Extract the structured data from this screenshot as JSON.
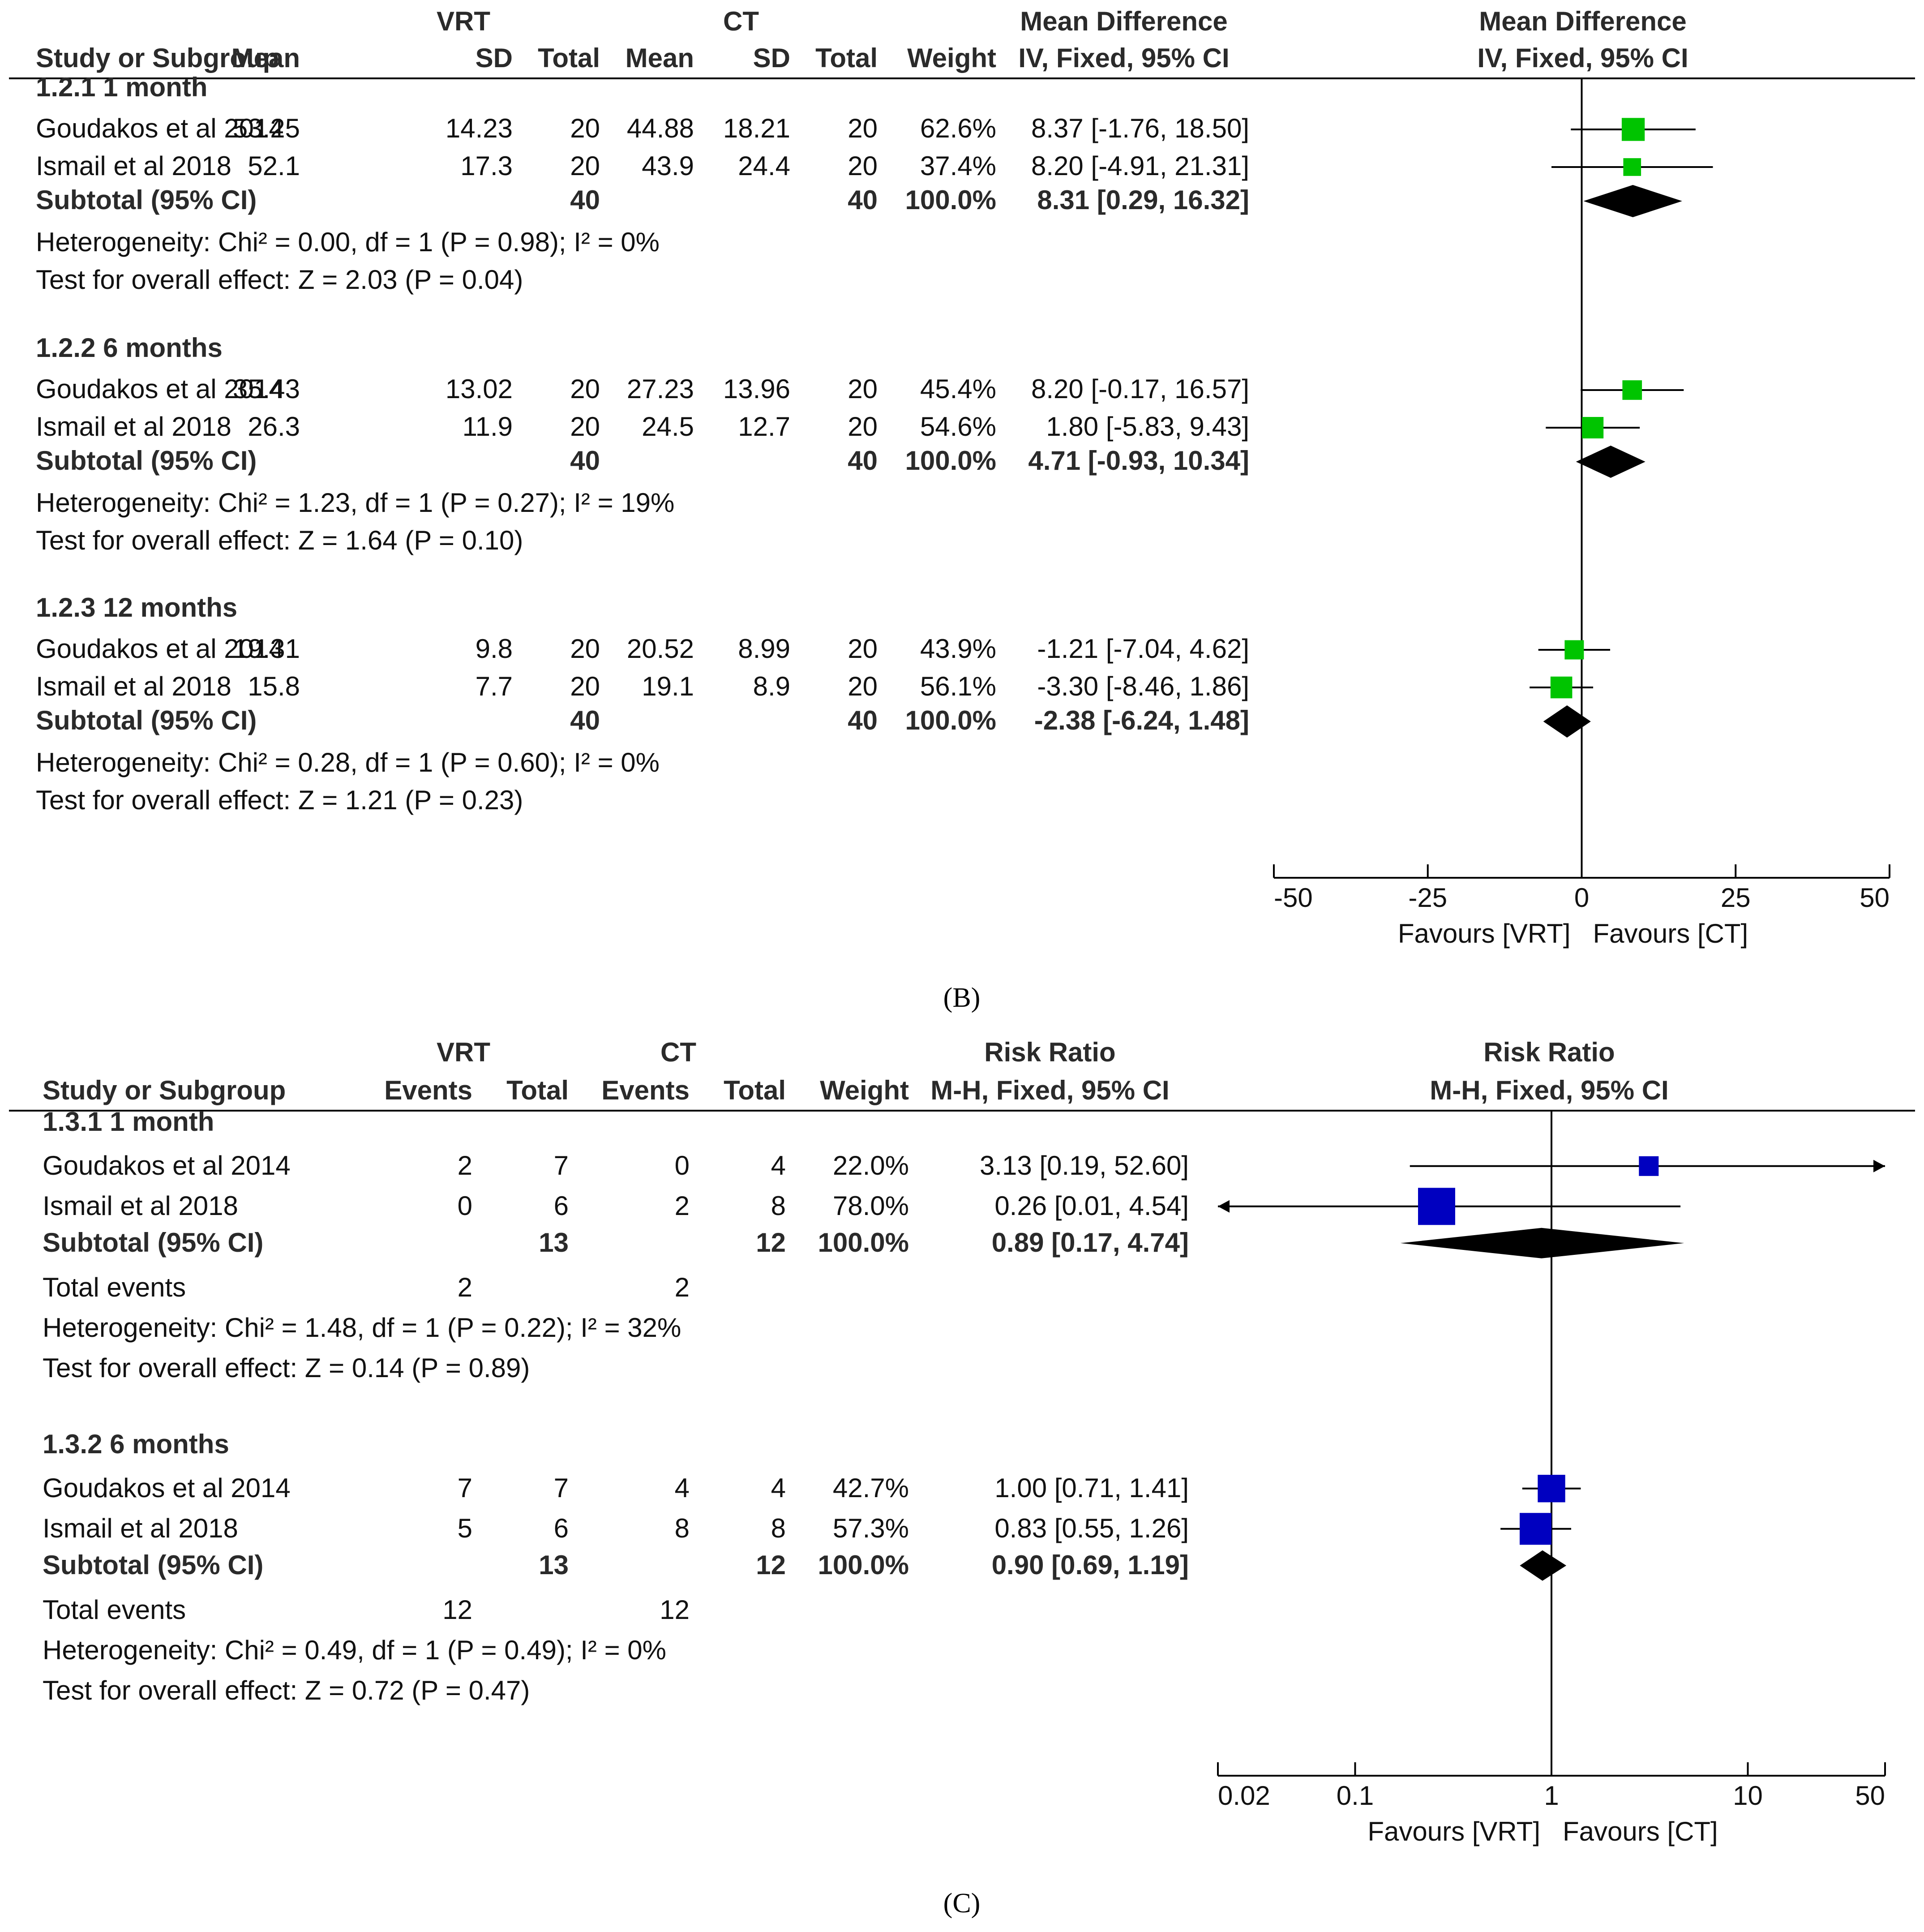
{
  "chart_data": [
    {
      "type": "forest",
      "panel": "B",
      "caption": "(B)",
      "scale": "linear",
      "axis": {
        "min": -50,
        "max": 50,
        "ticks": [
          -50,
          -25,
          0,
          25,
          50
        ],
        "tick_labels": [
          "-50",
          "-25",
          "0",
          "25",
          "50"
        ],
        "favours_left": "Favours [VRT]",
        "favours_right": "Favours [CT]"
      },
      "headers": {
        "group_exp": "VRT",
        "group_ctl": "CT",
        "effect_title": "Mean Difference",
        "effect_method": "IV, Fixed, 95% CI",
        "plot_title": "Mean Difference",
        "plot_method": "IV, Fixed, 95% CI",
        "columns": [
          "Study or Subgroup",
          "Mean",
          "SD",
          "Total",
          "Mean",
          "SD",
          "Total",
          "Weight"
        ]
      },
      "marker_color": "#00c400",
      "subgroups": [
        {
          "label": "1.2.1 1 month",
          "studies": [
            {
              "name": "Goudakos et al 2014",
              "cells": [
                "53.25",
                "14.23",
                "20",
                "44.88",
                "18.21",
                "20",
                "62.6%"
              ],
              "ci_text": "8.37 [-1.76, 18.50]",
              "est": 8.37,
              "lo": -1.76,
              "hi": 18.5,
              "weight": 62.6
            },
            {
              "name": "Ismail et al 2018",
              "cells": [
                "52.1",
                "17.3",
                "20",
                "43.9",
                "24.4",
                "20",
                "37.4%"
              ],
              "ci_text": "8.20 [-4.91, 21.31]",
              "est": 8.2,
              "lo": -4.91,
              "hi": 21.31,
              "weight": 37.4
            }
          ],
          "subtotal": {
            "label": "Subtotal (95% CI)",
            "total_exp": "40",
            "total_ctl": "40",
            "weight": "100.0%",
            "ci_text": "8.31 [0.29, 16.32]",
            "est": 8.31,
            "lo": 0.29,
            "hi": 16.32
          },
          "total_events": null,
          "heterogeneity": "Heterogeneity: Chi² = 0.00, df = 1 (P = 0.98); I² = 0%",
          "overall": "Test for overall effect: Z = 2.03 (P = 0.04)"
        },
        {
          "label": "1.2.2 6 months",
          "studies": [
            {
              "name": "Goudakos et al 2014",
              "cells": [
                "35.43",
                "13.02",
                "20",
                "27.23",
                "13.96",
                "20",
                "45.4%"
              ],
              "ci_text": "8.20 [-0.17, 16.57]",
              "est": 8.2,
              "lo": -0.17,
              "hi": 16.57,
              "weight": 45.4
            },
            {
              "name": "Ismail et al 2018",
              "cells": [
                "26.3",
                "11.9",
                "20",
                "24.5",
                "12.7",
                "20",
                "54.6%"
              ],
              "ci_text": "1.80 [-5.83, 9.43]",
              "est": 1.8,
              "lo": -5.83,
              "hi": 9.43,
              "weight": 54.6
            }
          ],
          "subtotal": {
            "label": "Subtotal (95% CI)",
            "total_exp": "40",
            "total_ctl": "40",
            "weight": "100.0%",
            "ci_text": "4.71 [-0.93, 10.34]",
            "est": 4.71,
            "lo": -0.93,
            "hi": 10.34
          },
          "total_events": null,
          "heterogeneity": "Heterogeneity: Chi² = 1.23, df = 1 (P = 0.27); I² = 19%",
          "overall": "Test for overall effect: Z = 1.64 (P = 0.10)"
        },
        {
          "label": "1.2.3 12 months",
          "studies": [
            {
              "name": "Goudakos et al 2014",
              "cells": [
                "19.31",
                "9.8",
                "20",
                "20.52",
                "8.99",
                "20",
                "43.9%"
              ],
              "ci_text": "-1.21 [-7.04, 4.62]",
              "est": -1.21,
              "lo": -7.04,
              "hi": 4.62,
              "weight": 43.9
            },
            {
              "name": "Ismail et al 2018",
              "cells": [
                "15.8",
                "7.7",
                "20",
                "19.1",
                "8.9",
                "20",
                "56.1%"
              ],
              "ci_text": "-3.30 [-8.46, 1.86]",
              "est": -3.3,
              "lo": -8.46,
              "hi": 1.86,
              "weight": 56.1
            }
          ],
          "subtotal": {
            "label": "Subtotal (95% CI)",
            "total_exp": "40",
            "total_ctl": "40",
            "weight": "100.0%",
            "ci_text": "-2.38 [-6.24, 1.48]",
            "est": -2.38,
            "lo": -6.24,
            "hi": 1.48
          },
          "total_events": null,
          "heterogeneity": "Heterogeneity: Chi² = 0.28, df = 1 (P = 0.60); I² = 0%",
          "overall": "Test for overall effect: Z = 1.21 (P = 0.23)"
        }
      ]
    },
    {
      "type": "forest",
      "panel": "C",
      "caption": "(C)",
      "scale": "log",
      "axis": {
        "min": 0.02,
        "max": 50,
        "ticks": [
          0.02,
          0.1,
          1,
          10,
          50
        ],
        "tick_labels": [
          "0.02",
          "0.1",
          "1",
          "10",
          "50"
        ],
        "favours_left": "Favours [VRT]",
        "favours_right": "Favours [CT]"
      },
      "headers": {
        "group_exp": "VRT",
        "group_ctl": "CT",
        "effect_title": "Risk Ratio",
        "effect_method": "M-H, Fixed, 95% CI",
        "plot_title": "Risk Ratio",
        "plot_method": "M-H, Fixed, 95% CI",
        "columns": [
          "Study or Subgroup",
          "Events",
          "Total",
          "Events",
          "Total",
          "Weight"
        ]
      },
      "marker_color": "#0000c0",
      "subgroups": [
        {
          "label": "1.3.1 1 month",
          "studies": [
            {
              "name": "Goudakos et al 2014",
              "cells": [
                "2",
                "7",
                "0",
                "4",
                "22.0%"
              ],
              "ci_text": "3.13 [0.19, 52.60]",
              "est": 3.13,
              "lo": 0.19,
              "hi": 52.6,
              "weight": 22.0
            },
            {
              "name": "Ismail et al 2018",
              "cells": [
                "0",
                "6",
                "2",
                "8",
                "78.0%"
              ],
              "ci_text": "0.26 [0.01, 4.54]",
              "est": 0.26,
              "lo": 0.01,
              "hi": 4.54,
              "weight": 78.0
            }
          ],
          "subtotal": {
            "label": "Subtotal (95% CI)",
            "total_exp": "13",
            "total_ctl": "12",
            "weight": "100.0%",
            "ci_text": "0.89 [0.17, 4.74]",
            "est": 0.89,
            "lo": 0.17,
            "hi": 4.74
          },
          "total_events": {
            "label": "Total events",
            "exp": "2",
            "ctl": "2"
          },
          "heterogeneity": "Heterogeneity: Chi² = 1.48, df = 1 (P = 0.22); I² = 32%",
          "overall": "Test for overall effect: Z = 0.14 (P = 0.89)"
        },
        {
          "label": "1.3.2 6 months",
          "studies": [
            {
              "name": "Goudakos et al 2014",
              "cells": [
                "7",
                "7",
                "4",
                "4",
                "42.7%"
              ],
              "ci_text": "1.00 [0.71, 1.41]",
              "est": 1.0,
              "lo": 0.71,
              "hi": 1.41,
              "weight": 42.7
            },
            {
              "name": "Ismail et al 2018",
              "cells": [
                "5",
                "6",
                "8",
                "8",
                "57.3%"
              ],
              "ci_text": "0.83 [0.55, 1.26]",
              "est": 0.83,
              "lo": 0.55,
              "hi": 1.26,
              "weight": 57.3
            }
          ],
          "subtotal": {
            "label": "Subtotal (95% CI)",
            "total_exp": "13",
            "total_ctl": "12",
            "weight": "100.0%",
            "ci_text": "0.90 [0.69, 1.19]",
            "est": 0.9,
            "lo": 0.69,
            "hi": 1.19
          },
          "total_events": {
            "label": "Total events",
            "exp": "12",
            "ctl": "12"
          },
          "heterogeneity": "Heterogeneity: Chi² = 0.49, df = 1 (P = 0.49); I² = 0%",
          "overall": "Test for overall effect: Z = 0.72 (P = 0.47)"
        }
      ]
    }
  ]
}
